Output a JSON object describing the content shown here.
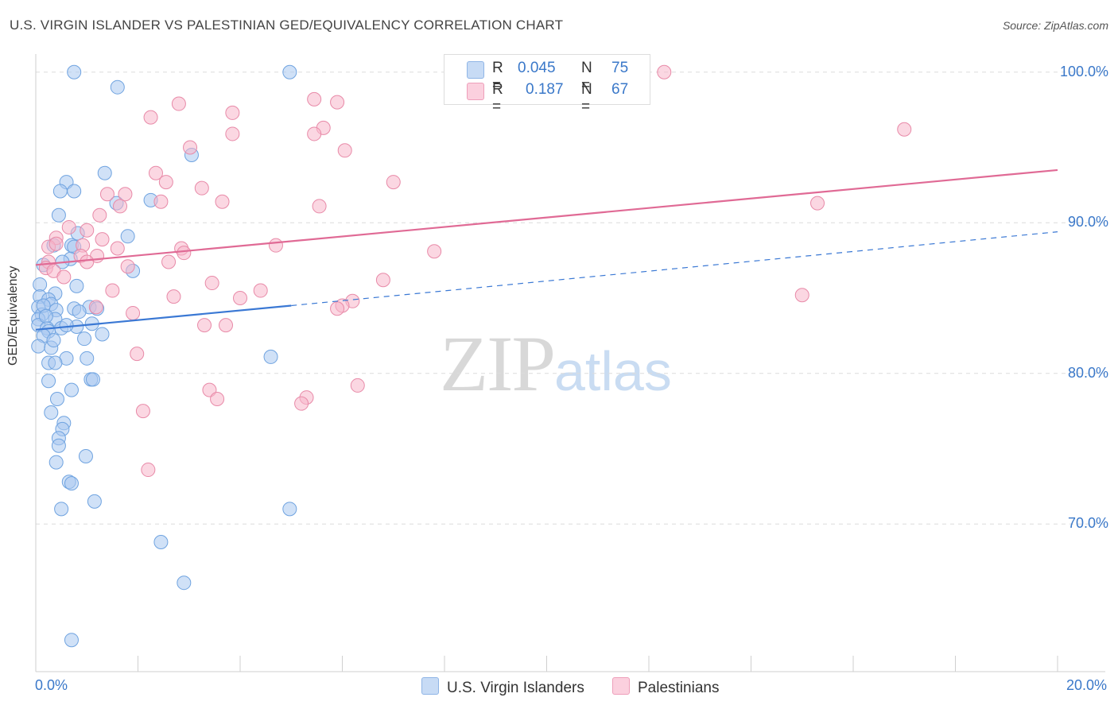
{
  "title": "U.S. VIRGIN ISLANDER VS PALESTINIAN GED/EQUIVALENCY CORRELATION CHART",
  "source": "Source: ZipAtlas.com",
  "watermark": {
    "zip": "ZIP",
    "atlas": "atlas"
  },
  "stats": [
    {
      "r_label": "R =",
      "r_value": "0.045",
      "n_label": "N =",
      "n_value": "75",
      "color": "#a9c8f0"
    },
    {
      "r_label": "R =",
      "r_value": "0.187",
      "n_label": "N =",
      "n_value": "67",
      "color": "#f7b6cb"
    }
  ],
  "chart_data": {
    "type": "scatter",
    "ylabel": "GED/Equivalency",
    "xlim": [
      0,
      20
    ],
    "ylim": [
      60.2,
      101.2
    ],
    "x_tick_labels": [
      {
        "value": 0,
        "label": "0.0%"
      },
      {
        "value": 20,
        "label": "20.0%"
      }
    ],
    "y_tick_labels": [
      {
        "value": 70,
        "label": "70.0%"
      },
      {
        "value": 80,
        "label": "80.0%"
      },
      {
        "value": 90,
        "label": "90.0%"
      },
      {
        "value": 100,
        "label": "100.0%"
      }
    ],
    "grid": true,
    "legend_position": "bottom-center",
    "series": [
      {
        "name": "U.S. Virgin Islanders",
        "color": "#6fa3e0",
        "fill": "#a9c8f0",
        "trend": {
          "x0": 0,
          "y0": 82.9,
          "x1": 5.0,
          "y1": 84.5,
          "dash_x1": 20,
          "dash_y1": 89.4,
          "color": "#3a78d4"
        },
        "points": [
          [
            0.75,
            100.0
          ],
          [
            4.97,
            100.0
          ],
          [
            1.6,
            99.0
          ],
          [
            3.05,
            94.5
          ],
          [
            1.35,
            93.3
          ],
          [
            0.6,
            92.7
          ],
          [
            0.75,
            92.1
          ],
          [
            0.48,
            92.1
          ],
          [
            1.58,
            91.3
          ],
          [
            2.25,
            91.5
          ],
          [
            0.45,
            90.5
          ],
          [
            1.8,
            89.1
          ],
          [
            0.82,
            89.3
          ],
          [
            0.7,
            88.5
          ],
          [
            0.35,
            88.5
          ],
          [
            0.75,
            88.4
          ],
          [
            0.68,
            87.6
          ],
          [
            0.52,
            87.4
          ],
          [
            0.15,
            87.2
          ],
          [
            1.9,
            86.8
          ],
          [
            0.8,
            85.8
          ],
          [
            0.08,
            85.9
          ],
          [
            0.38,
            85.3
          ],
          [
            0.08,
            85.1
          ],
          [
            0.25,
            84.9
          ],
          [
            0.3,
            84.6
          ],
          [
            0.05,
            84.4
          ],
          [
            0.4,
            84.2
          ],
          [
            0.75,
            84.3
          ],
          [
            1.05,
            84.4
          ],
          [
            0.12,
            83.9
          ],
          [
            0.85,
            84.1
          ],
          [
            0.05,
            83.6
          ],
          [
            0.38,
            83.6
          ],
          [
            0.05,
            83.2
          ],
          [
            0.22,
            83.0
          ],
          [
            0.5,
            83.0
          ],
          [
            0.8,
            83.1
          ],
          [
            1.1,
            83.3
          ],
          [
            0.25,
            82.8
          ],
          [
            0.15,
            82.5
          ],
          [
            1.3,
            82.6
          ],
          [
            0.95,
            82.3
          ],
          [
            0.05,
            81.8
          ],
          [
            0.3,
            81.7
          ],
          [
            0.6,
            81.0
          ],
          [
            1.0,
            81.0
          ],
          [
            4.6,
            81.1
          ],
          [
            0.25,
            80.7
          ],
          [
            0.38,
            80.7
          ],
          [
            1.08,
            79.6
          ],
          [
            1.12,
            79.6
          ],
          [
            0.25,
            79.5
          ],
          [
            0.7,
            78.9
          ],
          [
            0.42,
            78.3
          ],
          [
            0.3,
            77.4
          ],
          [
            0.55,
            76.7
          ],
          [
            0.52,
            76.3
          ],
          [
            0.45,
            75.7
          ],
          [
            0.45,
            75.2
          ],
          [
            0.4,
            74.1
          ],
          [
            0.98,
            74.5
          ],
          [
            0.65,
            72.8
          ],
          [
            0.7,
            72.7
          ],
          [
            1.15,
            71.5
          ],
          [
            0.5,
            71.0
          ],
          [
            4.97,
            71.0
          ],
          [
            2.45,
            68.8
          ],
          [
            2.9,
            66.1
          ],
          [
            0.7,
            62.3
          ],
          [
            0.15,
            84.5
          ],
          [
            0.2,
            83.8
          ],
          [
            0.6,
            83.2
          ],
          [
            1.2,
            84.3
          ],
          [
            0.35,
            82.2
          ]
        ]
      },
      {
        "name": "Palestinians",
        "color": "#e88aa8",
        "fill": "#f7b6cb",
        "trend": {
          "x0": 0,
          "y0": 87.2,
          "x1": 20,
          "y1": 93.5,
          "color": "#e06a95"
        },
        "points": [
          [
            12.3,
            100.0
          ],
          [
            2.8,
            97.9
          ],
          [
            5.45,
            98.2
          ],
          [
            5.9,
            98.0
          ],
          [
            2.25,
            97.0
          ],
          [
            3.85,
            97.3
          ],
          [
            5.63,
            96.3
          ],
          [
            5.45,
            95.9
          ],
          [
            3.85,
            95.9
          ],
          [
            3.02,
            95.0
          ],
          [
            17.0,
            96.2
          ],
          [
            6.05,
            94.8
          ],
          [
            2.35,
            93.3
          ],
          [
            2.55,
            92.7
          ],
          [
            7.0,
            92.7
          ],
          [
            3.25,
            92.3
          ],
          [
            1.4,
            91.9
          ],
          [
            1.75,
            91.9
          ],
          [
            2.45,
            91.4
          ],
          [
            3.65,
            91.4
          ],
          [
            1.65,
            91.1
          ],
          [
            5.55,
            91.1
          ],
          [
            15.3,
            91.3
          ],
          [
            1.25,
            90.5
          ],
          [
            0.65,
            89.7
          ],
          [
            1.0,
            89.5
          ],
          [
            0.4,
            89.0
          ],
          [
            1.3,
            88.9
          ],
          [
            0.92,
            88.5
          ],
          [
            0.25,
            88.4
          ],
          [
            0.4,
            88.6
          ],
          [
            1.6,
            88.3
          ],
          [
            2.85,
            88.3
          ],
          [
            4.7,
            88.5
          ],
          [
            7.8,
            88.1
          ],
          [
            2.9,
            88.0
          ],
          [
            1.2,
            87.8
          ],
          [
            0.88,
            87.8
          ],
          [
            0.25,
            87.4
          ],
          [
            1.0,
            87.4
          ],
          [
            2.6,
            87.4
          ],
          [
            0.2,
            87.0
          ],
          [
            0.35,
            86.8
          ],
          [
            1.8,
            87.1
          ],
          [
            0.55,
            86.4
          ],
          [
            6.8,
            86.2
          ],
          [
            3.45,
            86.0
          ],
          [
            1.5,
            85.5
          ],
          [
            4.4,
            85.5
          ],
          [
            2.7,
            85.1
          ],
          [
            4.0,
            85.0
          ],
          [
            15.0,
            85.2
          ],
          [
            6.2,
            84.8
          ],
          [
            6.0,
            84.5
          ],
          [
            5.9,
            84.3
          ],
          [
            1.18,
            84.4
          ],
          [
            1.9,
            84.0
          ],
          [
            3.3,
            83.2
          ],
          [
            3.72,
            83.2
          ],
          [
            1.98,
            81.3
          ],
          [
            6.3,
            79.2
          ],
          [
            3.4,
            78.9
          ],
          [
            3.55,
            78.3
          ],
          [
            5.3,
            78.4
          ],
          [
            5.2,
            78.0
          ],
          [
            2.1,
            77.5
          ],
          [
            2.2,
            73.6
          ]
        ]
      }
    ]
  }
}
